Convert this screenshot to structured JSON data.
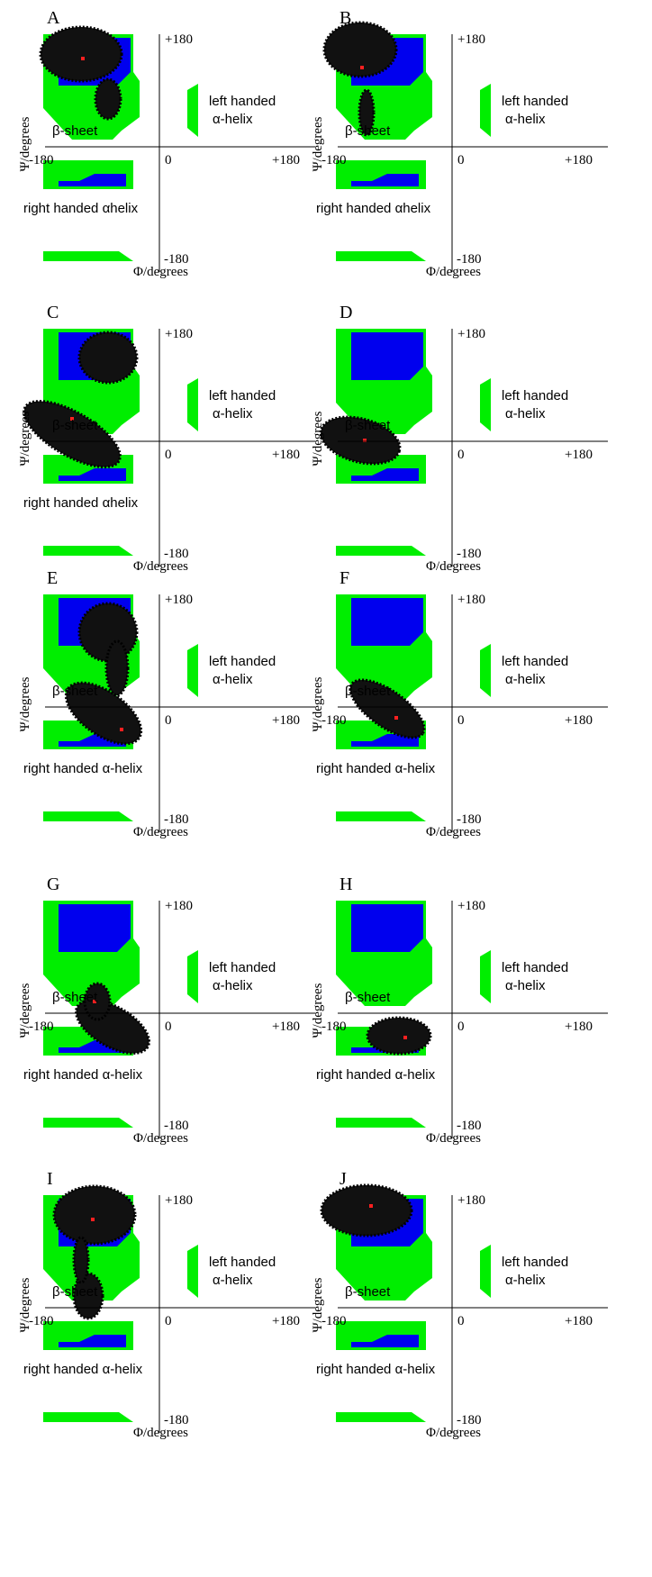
{
  "panels": [
    {
      "label": "A",
      "psi_top": "+180",
      "phi_left": "-180",
      "origin": "0",
      "phi_right": "+180",
      "psi_bottom": "-180",
      "x_axis": "Φ/degrees",
      "y_axis": "Ψ/degrees",
      "left_helix_1": "left handed",
      "left_helix_2": "α-helix",
      "beta": "β-sheet",
      "right_helix": "right handed αhelix"
    },
    {
      "label": "B",
      "psi_top": "+180",
      "phi_left": "-180",
      "origin": "0",
      "phi_right": "+180",
      "psi_bottom": "-180",
      "x_axis": "Φ/degrees",
      "y_axis": "Ψ/degrees",
      "left_helix_1": "left handed",
      "left_helix_2": "α-helix",
      "beta": "β-sheet",
      "right_helix": "right handed αhelix"
    },
    {
      "label": "C",
      "psi_top": "+180",
      "origin": "0",
      "phi_right": "+180",
      "psi_bottom": "-180",
      "x_axis": "Φ/degrees",
      "y_axis": "Ψ/degrees",
      "left_helix_1": "left handed",
      "left_helix_2": "α-helix",
      "beta": "β-sheet",
      "right_helix": "right handed αhelix"
    },
    {
      "label": "D",
      "psi_top": "+180",
      "origin": "0",
      "phi_right": "+180",
      "psi_bottom": "-180",
      "x_axis": "Φ/degrees",
      "y_axis": "Ψ/degrees",
      "left_helix_1": "left handed",
      "left_helix_2": "α-helix",
      "beta": "β-sheet"
    },
    {
      "label": "E",
      "psi_top": "+180",
      "origin": "0",
      "phi_right": "+180",
      "psi_bottom": "-180",
      "x_axis": "Φ/degrees",
      "y_axis": "Ψ/degrees",
      "left_helix_1": "left handed",
      "left_helix_2": "α-helix",
      "beta": "β-sheet",
      "right_helix": "right handed α-helix"
    },
    {
      "label": "F",
      "psi_top": "+180",
      "phi_left": "-180",
      "origin": "0",
      "phi_right": "+180",
      "psi_bottom": "-180",
      "x_axis": "Φ/degrees",
      "y_axis": "Ψ/degrees",
      "left_helix_1": "left handed",
      "left_helix_2": "α-helix",
      "beta": "β-sheet",
      "right_helix": "right handed α-helix"
    },
    {
      "label": "G",
      "psi_top": "+180",
      "phi_left": "-180",
      "origin": "0",
      "phi_right": "+180",
      "psi_bottom": "-180",
      "x_axis": "Φ/degrees",
      "y_axis": "Ψ/degrees",
      "left_helix_1": "left handed",
      "left_helix_2": "α-helix",
      "beta": "β-sheet",
      "right_helix": "right handed α-helix"
    },
    {
      "label": "H",
      "psi_top": "+180",
      "phi_left": "-180",
      "origin": "0",
      "phi_right": "+180",
      "psi_bottom": "-180",
      "x_axis": "Φ/degrees",
      "y_axis": "Ψ/degrees",
      "left_helix_1": "left handed",
      "left_helix_2": "α-helix",
      "beta": "β-sheet",
      "right_helix": "right handed α-helix"
    },
    {
      "label": "I",
      "psi_top": "+180",
      "phi_left": "-180",
      "origin": "0",
      "phi_right": "+180",
      "psi_bottom": "-180",
      "x_axis": "Φ/degrees",
      "y_axis": "Ψ/degrees",
      "left_helix_1": "left handed",
      "left_helix_2": "α-helix",
      "beta": "β-sheet",
      "right_helix": "right handed α-helix"
    },
    {
      "label": "J",
      "psi_top": "+180",
      "phi_left": "-180",
      "origin": "0",
      "phi_right": "+180",
      "psi_bottom": "-180",
      "x_axis": "Φ/degrees",
      "y_axis": "Ψ/degrees",
      "left_helix_1": "left handed",
      "left_helix_2": "α-helix",
      "beta": "β-sheet",
      "right_helix": "right handed α-helix"
    }
  ]
}
